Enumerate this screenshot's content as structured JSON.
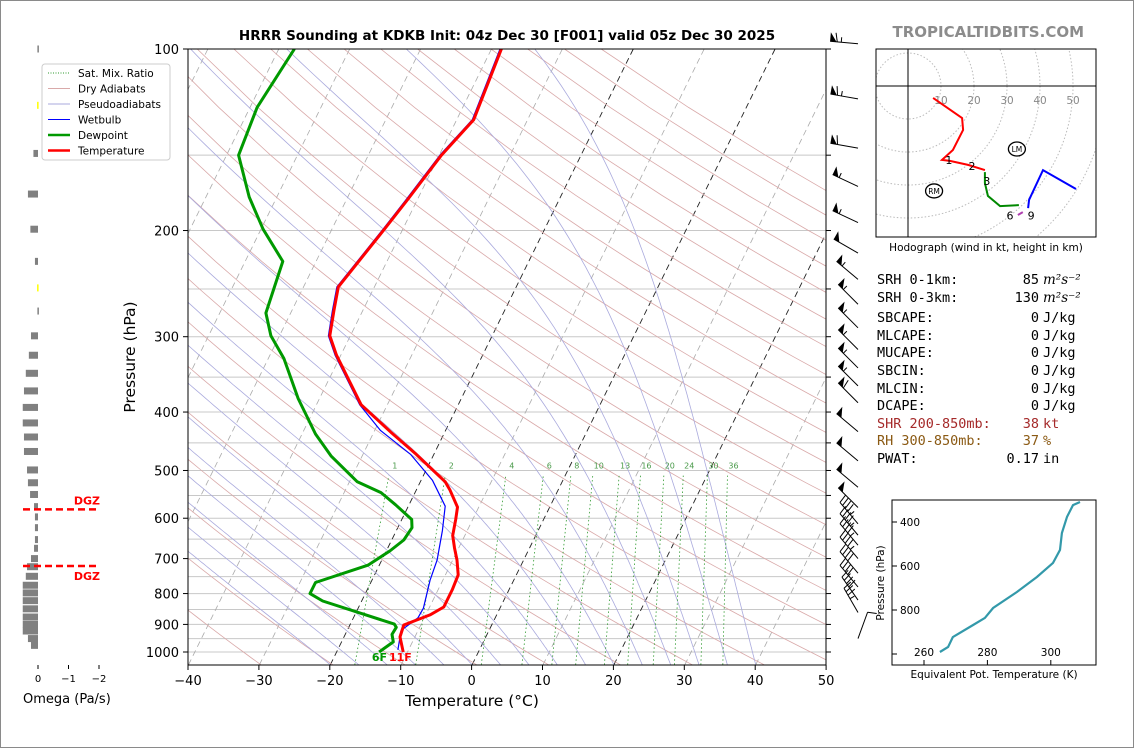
{
  "watermark": "TROPICALTIDBITS.COM",
  "title": "HRRR Sounding at KDKB Init: 04z Dec 30 [F001] valid 05z Dec 30 2025",
  "legend": [
    {
      "label": "Sat. Mix. Ratio",
      "color": "#2e9a2e",
      "style": "dotted"
    },
    {
      "label": "Dry Adiabats",
      "color": "#d9a9a9",
      "style": "solid"
    },
    {
      "label": "Pseudoadiabats",
      "color": "#aaaadd",
      "style": "solid"
    },
    {
      "label": "Wetbulb",
      "color": "#0000ff",
      "style": "solid"
    },
    {
      "label": "Dewpoint",
      "color": "#009900",
      "style": "thick"
    },
    {
      "label": "Temperature",
      "color": "#ff0000",
      "style": "thick"
    }
  ],
  "skewt": {
    "xlabel": "Temperature (°C)",
    "ylabel": "Pressure (hPa)",
    "xticks": [
      "−40",
      "−30",
      "−20",
      "−10",
      "0",
      "10",
      "20",
      "30",
      "40",
      "50"
    ],
    "xtick_values": [
      -40,
      -30,
      -20,
      -10,
      0,
      10,
      20,
      30,
      40,
      50
    ],
    "pressure_ticks": [
      "100",
      "200",
      "300",
      "400",
      "500",
      "600",
      "700",
      "800",
      "900",
      "1000"
    ],
    "pressure_tick_values": [
      100,
      200,
      300,
      400,
      500,
      600,
      700,
      800,
      900,
      1000
    ],
    "mixing_ratio_labels": [
      "1",
      "2",
      "4",
      "6",
      "8",
      "10",
      "13",
      "16",
      "20",
      "24",
      "30",
      "36"
    ],
    "mixing_ratio_values": [
      1,
      2,
      4,
      6,
      8,
      10,
      13,
      16,
      20,
      24,
      30,
      36
    ],
    "surface_dewpoint_label": "6F",
    "surface_temperature_label": "11F"
  },
  "stats": [
    {
      "label": "SRH 0-1km:",
      "value": "85",
      "unit": "m²s⁻²",
      "color": "#000000",
      "math": true
    },
    {
      "label": "SRH 0-3km:",
      "value": "130",
      "unit": "m²s⁻²",
      "color": "#000000",
      "math": true
    },
    {
      "label": "SBCAPE:",
      "value": "0",
      "unit": "J/kg",
      "color": "#000000"
    },
    {
      "label": "MLCAPE:",
      "value": "0",
      "unit": "J/kg",
      "color": "#000000"
    },
    {
      "label": "MUCAPE:",
      "value": "0",
      "unit": "J/kg",
      "color": "#000000"
    },
    {
      "label": "SBCIN:",
      "value": "0",
      "unit": "J/kg",
      "color": "#000000"
    },
    {
      "label": "MLCIN:",
      "value": "0",
      "unit": "J/kg",
      "color": "#000000"
    },
    {
      "label": "DCAPE:",
      "value": "0",
      "unit": "J/kg",
      "color": "#000000"
    },
    {
      "label": "SHR 200-850mb:",
      "value": "38",
      "unit": "kt",
      "color": "#a52a2a"
    },
    {
      "label": "RH 300-850mb:",
      "value": "37",
      "unit": "%",
      "color": "#8b5a14"
    },
    {
      "label": "PWAT:",
      "value": "0.17",
      "unit": "in",
      "color": "#000000"
    }
  ],
  "chart_data": [
    {
      "type": "line",
      "name": "skew-t",
      "title": "HRRR Sounding at KDKB Init: 04z Dec 30 [F001] valid 05z Dec 30 2025",
      "xlabel": "Temperature (°C)",
      "ylabel": "Pressure (hPa)",
      "xlim": [
        -40,
        50
      ],
      "ylim": [
        1050,
        100
      ],
      "temperature": [
        [
          1000,
          -10.6
        ],
        [
          944,
          -12.1
        ],
        [
          902,
          -12.4
        ],
        [
          868,
          -9.4
        ],
        [
          842,
          -8.0
        ],
        [
          789,
          -8.0
        ],
        [
          745,
          -8.2
        ],
        [
          704,
          -9.4
        ],
        [
          672,
          -10.6
        ],
        [
          641,
          -11.7
        ],
        [
          603,
          -12.4
        ],
        [
          575,
          -13.0
        ],
        [
          538,
          -15.3
        ],
        [
          522,
          -16.5
        ],
        [
          470,
          -22.5
        ],
        [
          432,
          -27.6
        ],
        [
          389,
          -33.7
        ],
        [
          322,
          -40.6
        ],
        [
          299,
          -42.9
        ],
        [
          271,
          -44.1
        ],
        [
          248,
          -45.1
        ],
        [
          199,
          -42.6
        ],
        [
          178,
          -41.4
        ],
        [
          150,
          -39.7
        ],
        [
          131,
          -37.6
        ],
        [
          100,
          -38.6
        ]
      ],
      "dewpoint": [
        [
          1000,
          -14.0
        ],
        [
          962,
          -12.7
        ],
        [
          935,
          -13.4
        ],
        [
          910,
          -13.3
        ],
        [
          899,
          -13.8
        ],
        [
          823,
          -25.5
        ],
        [
          800,
          -27.8
        ],
        [
          767,
          -27.8
        ],
        [
          718,
          -21.6
        ],
        [
          680,
          -19.5
        ],
        [
          652,
          -18.3
        ],
        [
          622,
          -18.0
        ],
        [
          603,
          -18.6
        ],
        [
          570,
          -21.9
        ],
        [
          544,
          -24.8
        ],
        [
          522,
          -28.9
        ],
        [
          473,
          -34.4
        ],
        [
          435,
          -38.1
        ],
        [
          380,
          -43.0
        ],
        [
          326,
          -47.8
        ],
        [
          299,
          -51.2
        ],
        [
          274,
          -53.5
        ],
        [
          225,
          -54.7
        ],
        [
          199,
          -59.7
        ],
        [
          176,
          -63.9
        ],
        [
          150,
          -68.3
        ],
        [
          125,
          -69.0
        ],
        [
          100,
          -67.8
        ]
      ],
      "wetbulb": [
        [
          992,
          -11.5
        ],
        [
          921,
          -12.4
        ],
        [
          878,
          -10.9
        ],
        [
          846,
          -10.8
        ],
        [
          760,
          -11.8
        ],
        [
          704,
          -12.2
        ],
        [
          629,
          -13.5
        ],
        [
          573,
          -14.8
        ],
        [
          519,
          -18.4
        ],
        [
          470,
          -23.3
        ],
        [
          429,
          -29.2
        ],
        [
          389,
          -33.9
        ],
        [
          322,
          -40.8
        ],
        [
          299,
          -43.1
        ],
        [
          271,
          -44.3
        ],
        [
          248,
          -45.3
        ],
        [
          199,
          -42.8
        ],
        [
          178,
          -41.6
        ],
        [
          150,
          -39.9
        ],
        [
          131,
          -37.8
        ],
        [
          100,
          -38.8
        ]
      ],
      "wind_barbs": [
        [
          98,
          275,
          65
        ],
        [
          121,
          280,
          65
        ],
        [
          146,
          280,
          60
        ],
        [
          169,
          295,
          55
        ],
        [
          194,
          295,
          58
        ],
        [
          218,
          300,
          50
        ],
        [
          241,
          310,
          55
        ],
        [
          265,
          315,
          55
        ],
        [
          290,
          315,
          55
        ],
        [
          315,
          315,
          55
        ],
        [
          338,
          315,
          55
        ],
        [
          362,
          315,
          55
        ],
        [
          386,
          315,
          60
        ],
        [
          431,
          310,
          50
        ],
        [
          482,
          310,
          50
        ],
        [
          533,
          310,
          50
        ],
        [
          576,
          315,
          50
        ],
        [
          613,
          320,
          45
        ],
        [
          640,
          320,
          45
        ],
        [
          665,
          320,
          45
        ],
        [
          700,
          320,
          45
        ],
        [
          740,
          320,
          40
        ],
        [
          780,
          320,
          40
        ],
        [
          820,
          325,
          40
        ],
        [
          860,
          330,
          35
        ],
        [
          950,
          20,
          10
        ]
      ]
    },
    {
      "type": "line",
      "name": "hodograph",
      "title": "Hodograph (wind in kt, height in km)",
      "ring_labels": [
        "10",
        "20",
        "30",
        "40",
        "50"
      ],
      "ring_values": [
        10,
        20,
        30,
        40,
        50
      ],
      "segments": [
        {
          "color": "#ff0000",
          "uv": [
            [
              7.6,
              -3.6
            ],
            [
              16.4,
              -9.7
            ],
            [
              16.7,
              -13.3
            ],
            [
              13.6,
              -19.4
            ],
            [
              10.3,
              -22.4
            ],
            [
              12.7,
              -22.7
            ],
            [
              18.2,
              -23.9
            ],
            [
              23.3,
              -25.5
            ]
          ]
        },
        {
          "color": "#008800",
          "uv": [
            [
              23.3,
              -26.1
            ],
            [
              23.3,
              -29.4
            ],
            [
              24.2,
              -33.3
            ],
            [
              27.9,
              -36.4
            ],
            [
              33.6,
              -36.1
            ]
          ]
        },
        {
          "color": "#b040b0",
          "uv": [
            [
              33.3,
              -39.1
            ],
            [
              34.8,
              -38.2
            ]
          ]
        },
        {
          "color": "#0000ff",
          "uv": [
            [
              36.4,
              -37.0
            ],
            [
              36.7,
              -34.5
            ],
            [
              40.9,
              -25.5
            ],
            [
              50.9,
              -31.2
            ]
          ]
        }
      ],
      "height_labels": [
        {
          "text": "1",
          "uv": [
            12.4,
            -22.4
          ]
        },
        {
          "text": "2",
          "uv": [
            20.3,
            -24.8
          ]
        },
        {
          "text": "3",
          "uv": [
            22.7,
            -27.9
          ]
        },
        {
          "text": "6",
          "uv": [
            31.8,
            -39.2
          ]
        },
        {
          "text": "9",
          "uv": [
            36.4,
            -39.2
          ]
        }
      ],
      "markers": [
        {
          "text": "RM",
          "uv": [
            7.9,
            -31.8
          ]
        },
        {
          "text": "LM",
          "uv": [
            33.0,
            -19.1
          ]
        }
      ]
    },
    {
      "type": "line",
      "name": "theta-e",
      "xlabel": "Equivalent Pot. Temperature (K)",
      "ylabel": "Pressure (hPa)",
      "xticks": [
        "260",
        "280",
        "300"
      ],
      "xtick_values": [
        260,
        280,
        300
      ],
      "yticks": [
        "400",
        "600",
        "800"
      ],
      "ytick_values": [
        400,
        600,
        800,
        1000
      ],
      "xlim": [
        250,
        314
      ],
      "ylim": [
        1040,
        310
      ],
      "color": "#3399aa",
      "points": [
        [
          265.0,
          991
        ],
        [
          267.6,
          968
        ],
        [
          269.1,
          923
        ],
        [
          275.5,
          868
        ],
        [
          279.2,
          836
        ],
        [
          281.8,
          791
        ],
        [
          289.3,
          718
        ],
        [
          295.6,
          650
        ],
        [
          300.7,
          586
        ],
        [
          302.9,
          527
        ],
        [
          303.5,
          450
        ],
        [
          305.1,
          377
        ],
        [
          307.0,
          323
        ],
        [
          309.2,
          309
        ]
      ]
    },
    {
      "type": "bar",
      "name": "omega",
      "xlabel": "Omega (Pa/s)",
      "xticks": [
        "0",
        "−1",
        "−2"
      ],
      "xtick_values": [
        0,
        -1,
        -2
      ],
      "dgz_label": "DGZ",
      "dgz_pressures": [
        580,
        720
      ],
      "bars": [
        [
          100,
          0.02,
          0
        ],
        [
          124,
          0.03,
          1
        ],
        [
          149,
          0.15,
          0
        ],
        [
          174,
          0.33,
          0
        ],
        [
          199,
          0.25,
          0
        ],
        [
          225,
          0.1,
          0
        ],
        [
          249,
          0.03,
          1
        ],
        [
          272,
          0.02,
          0
        ],
        [
          299,
          0.23,
          0
        ],
        [
          322,
          0.3,
          0
        ],
        [
          345,
          0.4,
          0
        ],
        [
          369,
          0.46,
          0
        ],
        [
          393,
          0.5,
          0
        ],
        [
          417,
          0.5,
          0
        ],
        [
          440,
          0.46,
          0
        ],
        [
          465,
          0.46,
          0
        ],
        [
          499,
          0.36,
          0
        ],
        [
          524,
          0.33,
          0
        ],
        [
          548,
          0.26,
          0
        ],
        [
          574,
          0.13,
          0
        ],
        [
          597,
          0.1,
          0
        ],
        [
          622,
          0.1,
          0
        ],
        [
          651,
          0.1,
          0
        ],
        [
          673,
          0.13,
          0
        ],
        [
          700,
          0.23,
          0
        ],
        [
          722,
          0.36,
          0
        ],
        [
          749,
          0.4,
          0
        ],
        [
          775,
          0.5,
          0
        ],
        [
          798,
          0.5,
          0
        ],
        [
          822,
          0.5,
          0
        ],
        [
          848,
          0.5,
          0
        ],
        [
          875,
          0.5,
          0
        ],
        [
          900,
          0.5,
          0
        ],
        [
          923,
          0.5,
          0
        ],
        [
          950,
          0.33,
          0
        ],
        [
          975,
          0.23,
          0
        ]
      ]
    }
  ]
}
